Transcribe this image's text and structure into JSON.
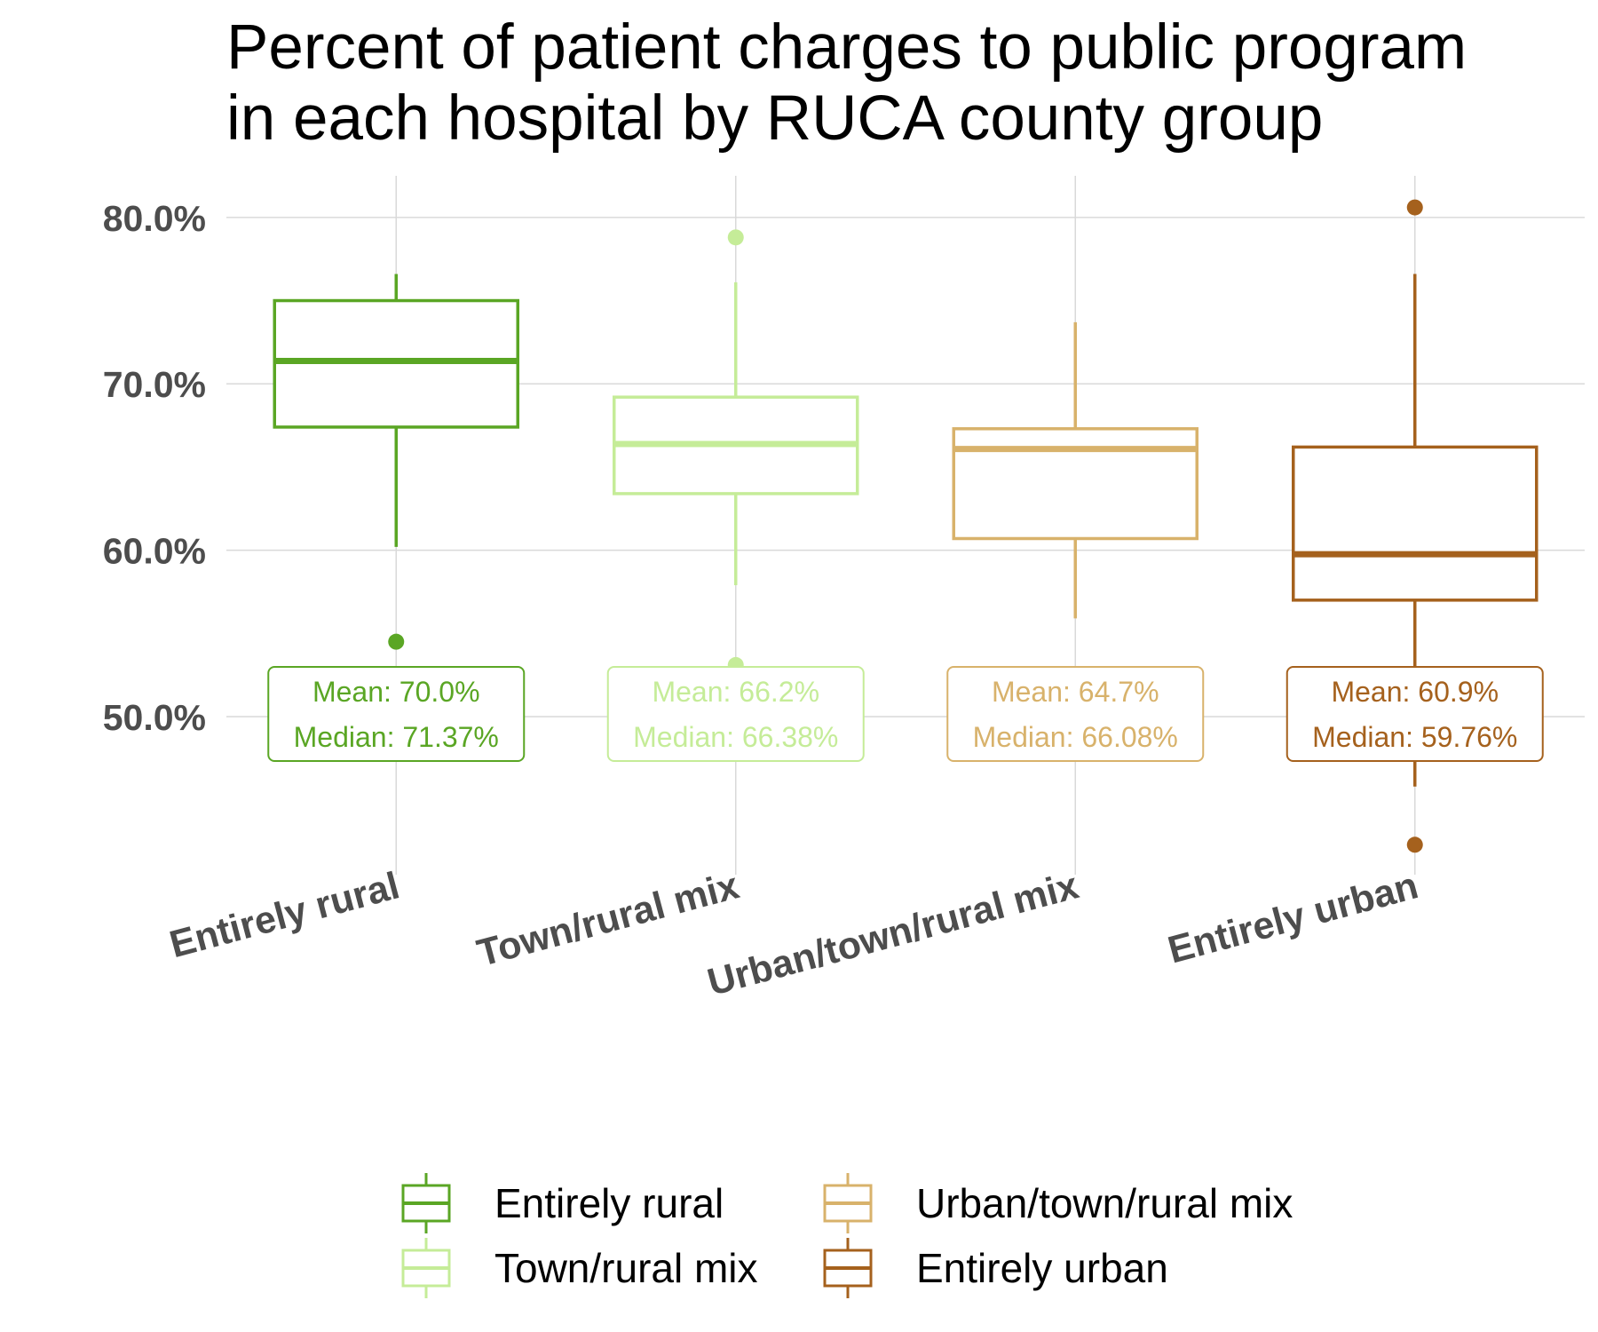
{
  "chart_data": {
    "type": "box",
    "title": "Percent of patient charges to public program in each hospital by RUCA county group",
    "title_lines": [
      "Percent of patient charges to public program",
      "in each hospital by RUCA county group"
    ],
    "xlabel": "",
    "ylabel": "",
    "ylim": [
      40.5,
      82.5
    ],
    "yticks": [
      50,
      60,
      70,
      80
    ],
    "ytick_labels": [
      "50.0%",
      "60.0%",
      "70.0%",
      "80.0%"
    ],
    "grid": true,
    "legend_position": "bottom",
    "categories": [
      "Entirely rural",
      "Town/rural mix",
      "Urban/town/rural mix",
      "Entirely urban"
    ],
    "series": [
      {
        "name": "Entirely rural",
        "color": "#5aa624",
        "whisker_low": 60.2,
        "q1": 67.4,
        "median": 71.37,
        "q3": 75.0,
        "whisker_high": 76.6,
        "outliers": [
          54.5
        ],
        "mean": 70.0,
        "label_lines": [
          "Mean: 70.0%",
          "Median: 71.37%"
        ]
      },
      {
        "name": "Town/rural mix",
        "color": "#c5ec98",
        "whisker_low": 57.9,
        "q1": 63.4,
        "median": 66.38,
        "q3": 69.2,
        "whisker_high": 76.1,
        "outliers": [
          78.8,
          53.1
        ],
        "mean": 66.2,
        "label_lines": [
          "Mean: 66.2%",
          "Median: 66.38%"
        ]
      },
      {
        "name": "Urban/town/rural mix",
        "color": "#d8b26b",
        "whisker_low": 55.9,
        "q1": 60.7,
        "median": 66.08,
        "q3": 67.3,
        "whisker_high": 73.7,
        "outliers": [],
        "mean": 64.7,
        "label_lines": [
          "Mean: 64.7%",
          "Median: 66.08%"
        ]
      },
      {
        "name": "Entirely urban",
        "color": "#a5611d",
        "whisker_low": 45.8,
        "q1": 57.0,
        "median": 59.76,
        "q3": 66.2,
        "whisker_high": 76.6,
        "outliers": [
          80.6,
          42.3
        ],
        "mean": 60.9,
        "label_lines": [
          "Mean: 60.9%",
          "Median: 59.76%"
        ]
      }
    ]
  }
}
